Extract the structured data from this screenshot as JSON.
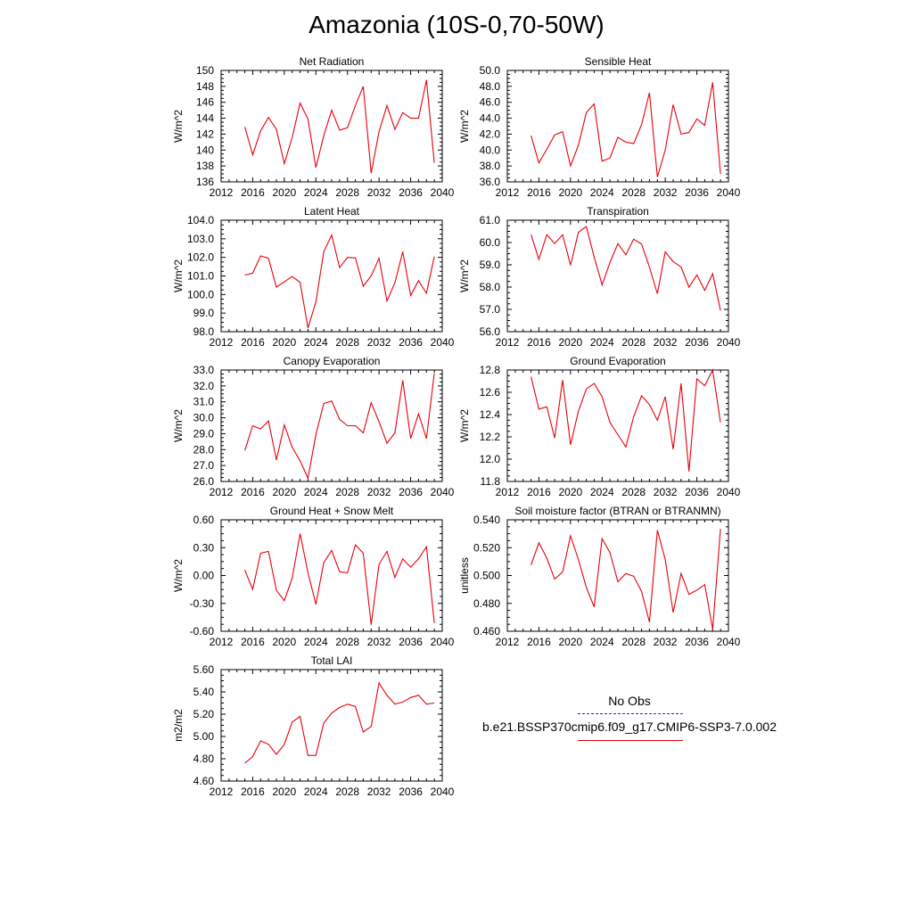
{
  "title": "Amazonia (10S-0,70-50W)",
  "legend": {
    "obs_label": "No Obs",
    "obs_color": "#2a2ad0",
    "model_label": "b.e21.BSSP370cmip6.f09_g17.CMIP6-SSP3-7.0.002",
    "model_color": "#e8000b"
  },
  "chart_data": [
    {
      "type": "line",
      "title": "Net Radiation",
      "ylabel": "W/m^2",
      "xlim": [
        2012,
        2040
      ],
      "ylim": [
        136,
        150
      ],
      "xticks": [
        "2012",
        "2016",
        "2020",
        "2024",
        "2028",
        "2032",
        "2036",
        "2040"
      ],
      "yticks": [
        "136",
        "138",
        "140",
        "142",
        "144",
        "146",
        "148",
        "150"
      ],
      "x": [
        2015,
        2016,
        2017,
        2018,
        2019,
        2020,
        2021,
        2022,
        2023,
        2024,
        2025,
        2026,
        2027,
        2028,
        2029,
        2030,
        2031,
        2032,
        2033,
        2034,
        2035,
        2036,
        2037,
        2038,
        2039
      ],
      "series": [
        {
          "values": [
            142.9,
            139.4,
            142.4,
            144.1,
            142.6,
            138.3,
            141.6,
            145.9,
            143.9,
            137.8,
            141.8,
            145.0,
            142.5,
            142.8,
            145.6,
            148.0,
            137.1,
            142.3,
            145.6,
            142.6,
            144.7,
            144.0,
            144.0,
            148.8,
            138.4
          ]
        }
      ]
    },
    {
      "type": "line",
      "title": "Sensible Heat",
      "ylabel": "W/m^2",
      "xlim": [
        2012,
        2040
      ],
      "ylim": [
        36,
        50
      ],
      "xticks": [
        "2012",
        "2016",
        "2020",
        "2024",
        "2028",
        "2032",
        "2036",
        "2040"
      ],
      "yticks": [
        "36.0",
        "38.0",
        "40.0",
        "42.0",
        "44.0",
        "46.0",
        "48.0",
        "50.0"
      ],
      "x": [
        2015,
        2016,
        2017,
        2018,
        2019,
        2020,
        2021,
        2022,
        2023,
        2024,
        2025,
        2026,
        2027,
        2028,
        2029,
        2030,
        2031,
        2032,
        2033,
        2034,
        2035,
        2036,
        2037,
        2038,
        2039
      ],
      "series": [
        {
          "values": [
            41.8,
            38.4,
            40.1,
            41.9,
            42.3,
            38.0,
            40.6,
            44.7,
            45.8,
            38.6,
            39.0,
            41.6,
            41.0,
            40.8,
            43.2,
            47.2,
            36.6,
            40.0,
            45.7,
            42.0,
            42.2,
            43.9,
            43.1,
            48.5,
            37.0
          ]
        }
      ]
    },
    {
      "type": "line",
      "title": "Latent Heat",
      "ylabel": "W/m^2",
      "xlim": [
        2012,
        2040
      ],
      "ylim": [
        98,
        104
      ],
      "xticks": [
        "2012",
        "2016",
        "2020",
        "2024",
        "2028",
        "2032",
        "2036",
        "2040"
      ],
      "yticks": [
        "98.0",
        "99.0",
        "100.0",
        "101.0",
        "102.0",
        "103.0",
        "104.0"
      ],
      "x": [
        2015,
        2016,
        2017,
        2018,
        2019,
        2020,
        2021,
        2022,
        2023,
        2024,
        2025,
        2026,
        2027,
        2028,
        2029,
        2030,
        2031,
        2032,
        2033,
        2034,
        2035,
        2036,
        2037,
        2038,
        2039
      ],
      "series": [
        {
          "values": [
            101.05,
            101.15,
            102.08,
            101.95,
            100.4,
            100.68,
            100.97,
            100.65,
            98.2,
            99.6,
            102.3,
            103.2,
            101.45,
            102.0,
            101.97,
            100.45,
            101.0,
            101.95,
            99.65,
            100.63,
            102.3,
            99.95,
            100.75,
            100.07,
            102.05
          ]
        }
      ]
    },
    {
      "type": "line",
      "title": "Transpiration",
      "ylabel": "W/m^2",
      "xlim": [
        2012,
        2040
      ],
      "ylim": [
        56,
        61
      ],
      "xticks": [
        "2012",
        "2016",
        "2020",
        "2024",
        "2028",
        "2032",
        "2036",
        "2040"
      ],
      "yticks": [
        "56.0",
        "57.0",
        "58.0",
        "59.0",
        "60.0",
        "61.0"
      ],
      "x": [
        2015,
        2016,
        2017,
        2018,
        2019,
        2020,
        2021,
        2022,
        2023,
        2024,
        2025,
        2026,
        2027,
        2028,
        2029,
        2030,
        2031,
        2032,
        2033,
        2034,
        2035,
        2036,
        2037,
        2038,
        2039
      ],
      "series": [
        {
          "values": [
            60.35,
            59.25,
            60.35,
            59.95,
            60.35,
            58.98,
            60.45,
            60.72,
            59.35,
            58.1,
            59.1,
            59.95,
            59.45,
            60.15,
            59.93,
            58.9,
            57.7,
            59.58,
            59.15,
            58.9,
            58.0,
            58.55,
            57.85,
            58.6,
            56.95
          ]
        }
      ]
    },
    {
      "type": "line",
      "title": "Canopy Evaporation",
      "ylabel": "W/m^2",
      "xlim": [
        2012,
        2040
      ],
      "ylim": [
        26,
        33
      ],
      "xticks": [
        "2012",
        "2016",
        "2020",
        "2024",
        "2028",
        "2032",
        "2036",
        "2040"
      ],
      "yticks": [
        "26.0",
        "27.0",
        "28.0",
        "29.0",
        "30.0",
        "31.0",
        "32.0",
        "33.0"
      ],
      "x": [
        2015,
        2016,
        2017,
        2018,
        2019,
        2020,
        2021,
        2022,
        2023,
        2024,
        2025,
        2026,
        2027,
        2028,
        2029,
        2030,
        2031,
        2032,
        2033,
        2034,
        2035,
        2036,
        2037,
        2038,
        2039
      ],
      "series": [
        {
          "values": [
            27.95,
            29.5,
            29.3,
            29.8,
            27.35,
            29.55,
            28.15,
            27.3,
            26.2,
            28.95,
            30.9,
            31.05,
            29.9,
            29.5,
            29.5,
            29.05,
            30.95,
            29.75,
            28.4,
            29.05,
            32.35,
            28.7,
            30.25,
            28.7,
            32.8
          ]
        }
      ]
    },
    {
      "type": "line",
      "title": "Ground Evaporation",
      "ylabel": "W/m^2",
      "xlim": [
        2012,
        2040
      ],
      "ylim": [
        11.8,
        12.8
      ],
      "xticks": [
        "2012",
        "2016",
        "2020",
        "2024",
        "2028",
        "2032",
        "2036",
        "2040"
      ],
      "yticks": [
        "11.8",
        "12.0",
        "12.2",
        "12.4",
        "12.6",
        "12.8"
      ],
      "x": [
        2015,
        2016,
        2017,
        2018,
        2019,
        2020,
        2021,
        2022,
        2023,
        2024,
        2025,
        2026,
        2027,
        2028,
        2029,
        2030,
        2031,
        2032,
        2033,
        2034,
        2035,
        2036,
        2037,
        2038,
        2039
      ],
      "series": [
        {
          "values": [
            12.74,
            12.45,
            12.47,
            12.19,
            12.71,
            12.13,
            12.43,
            12.63,
            12.68,
            12.56,
            12.33,
            12.22,
            12.11,
            12.38,
            12.57,
            12.49,
            12.35,
            12.56,
            12.09,
            12.68,
            11.89,
            12.72,
            12.66,
            12.8,
            12.33
          ]
        }
      ]
    },
    {
      "type": "line",
      "title": "Ground Heat + Snow Melt",
      "ylabel": "W/m^2",
      "xlim": [
        2012,
        2040
      ],
      "ylim": [
        -0.6,
        0.6
      ],
      "xticks": [
        "2012",
        "2016",
        "2020",
        "2024",
        "2028",
        "2032",
        "2036",
        "2040"
      ],
      "yticks": [
        "-0.60",
        "-0.30",
        "0.00",
        "0.30",
        "0.60"
      ],
      "x": [
        2015,
        2016,
        2017,
        2018,
        2019,
        2020,
        2021,
        2022,
        2023,
        2024,
        2025,
        2026,
        2027,
        2028,
        2029,
        2030,
        2031,
        2032,
        2033,
        2034,
        2035,
        2036,
        2037,
        2038,
        2039
      ],
      "series": [
        {
          "values": [
            0.06,
            -0.15,
            0.24,
            0.26,
            -0.16,
            -0.27,
            -0.03,
            0.45,
            0.03,
            -0.31,
            0.14,
            0.27,
            0.04,
            0.03,
            0.33,
            0.24,
            -0.53,
            0.12,
            0.26,
            -0.02,
            0.18,
            0.09,
            0.18,
            0.31,
            -0.51
          ]
        }
      ]
    },
    {
      "type": "line",
      "title": "Soil moisture factor (BTRAN or BTRANMN)",
      "ylabel": "unitless",
      "xlim": [
        2012,
        2040
      ],
      "ylim": [
        0.46,
        0.54
      ],
      "xticks": [
        "2012",
        "2016",
        "2020",
        "2024",
        "2028",
        "2032",
        "2036",
        "2040"
      ],
      "yticks": [
        "0.460",
        "0.480",
        "0.500",
        "0.520",
        "0.540"
      ],
      "x": [
        2015,
        2016,
        2017,
        2018,
        2019,
        2020,
        2021,
        2022,
        2023,
        2024,
        2025,
        2026,
        2027,
        2028,
        2029,
        2030,
        2031,
        2032,
        2033,
        2034,
        2035,
        2036,
        2037,
        2038,
        2039
      ],
      "series": [
        {
          "values": [
            0.5075,
            0.5235,
            0.5125,
            0.4975,
            0.5025,
            0.5285,
            0.5115,
            0.4915,
            0.4775,
            0.5265,
            0.5165,
            0.4955,
            0.5015,
            0.4995,
            0.4885,
            0.4665,
            0.5325,
            0.5115,
            0.4735,
            0.5015,
            0.4865,
            0.4895,
            0.4935,
            0.4615,
            0.5335
          ]
        }
      ]
    },
    {
      "type": "line",
      "title": "Total LAI",
      "ylabel": "m2/m2",
      "xlim": [
        2012,
        2040
      ],
      "ylim": [
        4.6,
        5.6
      ],
      "xticks": [
        "2012",
        "2016",
        "2020",
        "2024",
        "2028",
        "2032",
        "2036",
        "2040"
      ],
      "yticks": [
        "4.60",
        "4.80",
        "5.00",
        "5.20",
        "5.40",
        "5.60"
      ],
      "x": [
        2015,
        2016,
        2017,
        2018,
        2019,
        2020,
        2021,
        2022,
        2023,
        2024,
        2025,
        2026,
        2027,
        2028,
        2029,
        2030,
        2031,
        2032,
        2033,
        2034,
        2035,
        2036,
        2037,
        2038,
        2039
      ],
      "series": [
        {
          "values": [
            4.76,
            4.82,
            4.96,
            4.93,
            4.84,
            4.93,
            5.13,
            5.18,
            4.83,
            4.83,
            5.12,
            5.21,
            5.26,
            5.29,
            5.27,
            5.04,
            5.09,
            5.48,
            5.37,
            5.29,
            5.31,
            5.35,
            5.37,
            5.29,
            5.3
          ]
        }
      ]
    }
  ]
}
